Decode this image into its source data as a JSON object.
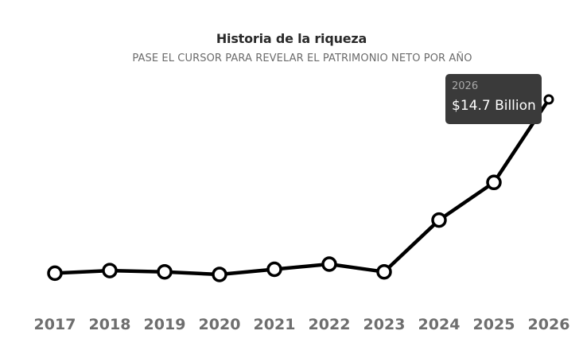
{
  "header": {
    "title": "Historia de la riqueza",
    "subtitle": "PASE EL CURSOR PARA REVELAR EL PATRIMONIO NETO POR AÑO"
  },
  "tooltip": {
    "year": "2026",
    "value": "$14.7 Billion"
  },
  "colors": {
    "line": "#000000",
    "point_fill": "#ffffff",
    "tick_label": "#6e6e6e",
    "tooltip_bg": "#3a3a3a"
  },
  "chart_data": {
    "type": "line",
    "title": "Historia de la riqueza",
    "subtitle": "PASE EL CURSOR PARA REVELAR EL PATRIMONIO NETO POR AÑO",
    "xlabel": "",
    "ylabel": "",
    "grid": false,
    "categories": [
      "2017",
      "2018",
      "2019",
      "2020",
      "2021",
      "2022",
      "2023",
      "2024",
      "2025",
      "2026"
    ],
    "values": [
      1.3,
      1.5,
      1.4,
      1.2,
      1.6,
      2.0,
      1.4,
      5.4,
      8.3,
      14.7
    ],
    "value_unit": "Billion USD",
    "highlighted_point": "2026"
  }
}
